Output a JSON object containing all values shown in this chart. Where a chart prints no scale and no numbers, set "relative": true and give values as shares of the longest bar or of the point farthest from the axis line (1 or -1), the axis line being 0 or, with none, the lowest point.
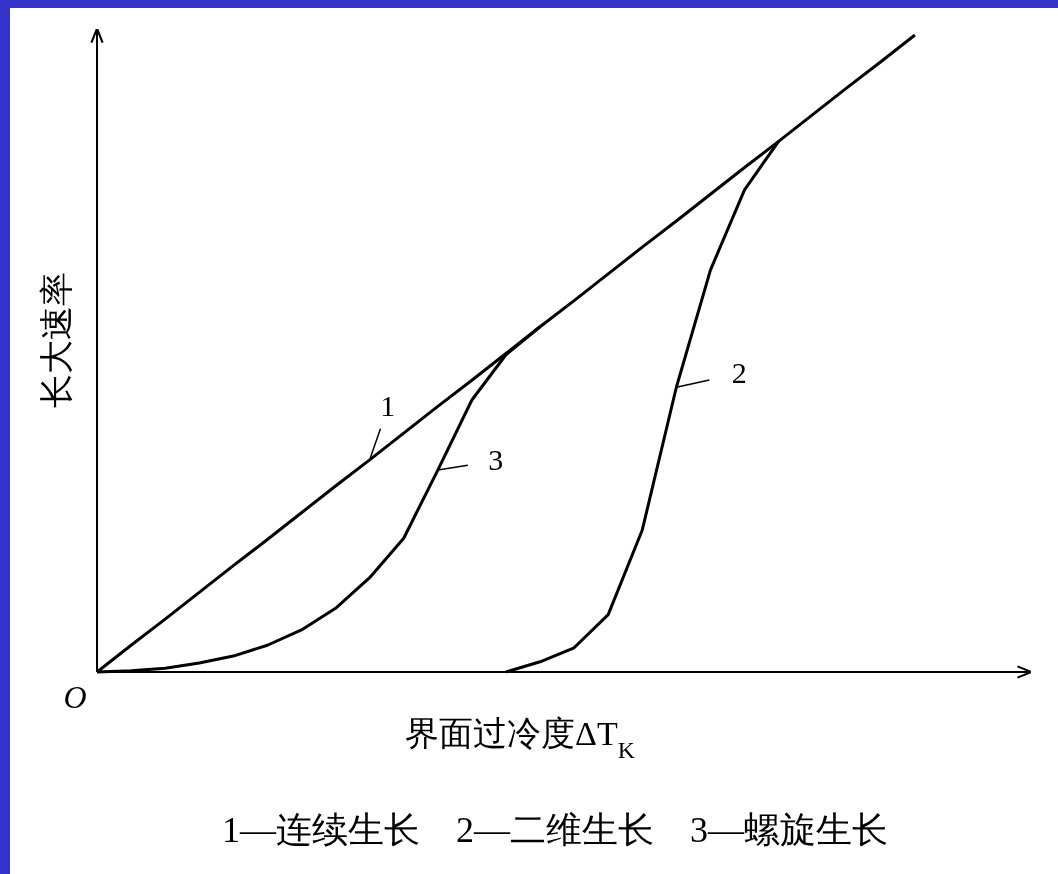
{
  "chart_data": {
    "type": "line",
    "relative": true,
    "xlabel": "界面过冷度ΔT$_{K}$",
    "ylabel": "长大速率",
    "marker": "none",
    "line_style": "solid",
    "legend": "center",
    "categories": [
      null,
      null,
      null,
      null,
      null,
      null,
      null,
      null,
      null,
      null,
      null,
      null,
      null,
      null,
      null,
      null,
      null,
      null,
      null,
      null,
      null,
      null,
      null,
      null,
      null,
      null,
      null,
      null
    ],
    "annotations": [
      "O",
      "1—连续生长　2—二维生长　3—螺旋生长"
    ],
    "series": [
      {
        "name": "1",
        "color": "#000000",
        "values": [
          0,
          0.042,
          0.083,
          0.125,
          0.167,
          0.208,
          0.25,
          0.292,
          0.333,
          0.375,
          0.417,
          0.458,
          0.5,
          0.542,
          0.583,
          0.625,
          0.667,
          0.708,
          0.75,
          0.792,
          0.833,
          0.875,
          0.917,
          0.958,
          1,
          null,
          null,
          null
        ]
      },
      {
        "name": "2",
        "color": "#000000",
        "values": [
          null,
          null,
          null,
          null,
          null,
          null,
          null,
          null,
          null,
          null,
          null,
          null,
          0,
          0.016,
          0.038,
          0.09,
          0.223,
          0.447,
          0.631,
          0.757,
          0.833,
          null,
          null,
          null,
          null,
          null,
          null,
          null
        ]
      },
      {
        "name": "3",
        "color": "#000000",
        "values": [
          0,
          0.002,
          0.006,
          0.014,
          0.025,
          0.042,
          0.066,
          0.1,
          0.148,
          0.21,
          0.317,
          0.427,
          0.498,
          0.542,
          null,
          null,
          null,
          null,
          null,
          null,
          null,
          null,
          null,
          null,
          null,
          null,
          null,
          null
        ]
      }
    ]
  }
}
